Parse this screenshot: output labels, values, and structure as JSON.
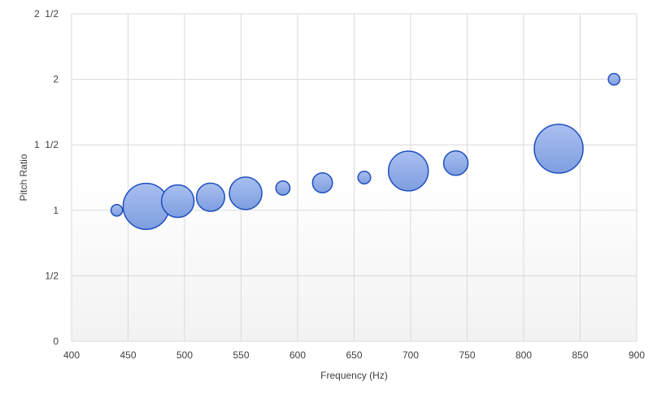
{
  "chart_data": {
    "type": "bubble",
    "title": "",
    "xlabel": "Frequency (Hz)",
    "ylabel": "Pitch Ratio",
    "xlim": [
      400,
      900
    ],
    "ylim": [
      0,
      2.5
    ],
    "grid": true,
    "x_ticks": [
      {
        "value": 400,
        "label": "400"
      },
      {
        "value": 450,
        "label": "450"
      },
      {
        "value": 500,
        "label": "500"
      },
      {
        "value": 550,
        "label": "550"
      },
      {
        "value": 600,
        "label": "600"
      },
      {
        "value": 650,
        "label": "650"
      },
      {
        "value": 700,
        "label": "700"
      },
      {
        "value": 750,
        "label": "750"
      },
      {
        "value": 800,
        "label": "800"
      },
      {
        "value": 850,
        "label": "850"
      },
      {
        "value": 900,
        "label": "900"
      }
    ],
    "y_ticks": [
      {
        "value": 0,
        "label": "0"
      },
      {
        "value": 0.5,
        "label": "1/2"
      },
      {
        "value": 1,
        "label": "1"
      },
      {
        "value": 1.5,
        "label": "1  1/2"
      },
      {
        "value": 2,
        "label": "2"
      },
      {
        "value": 2.5,
        "label": "2  1/2"
      }
    ],
    "points": [
      {
        "x": 440,
        "y": 1.0,
        "size": 1
      },
      {
        "x": 466,
        "y": 1.03,
        "size": 16
      },
      {
        "x": 494,
        "y": 1.07,
        "size": 8
      },
      {
        "x": 523,
        "y": 1.1,
        "size": 6
      },
      {
        "x": 554,
        "y": 1.13,
        "size": 8
      },
      {
        "x": 587,
        "y": 1.17,
        "size": 1.5
      },
      {
        "x": 622,
        "y": 1.21,
        "size": 3
      },
      {
        "x": 659,
        "y": 1.25,
        "size": 1.2
      },
      {
        "x": 698,
        "y": 1.3,
        "size": 12
      },
      {
        "x": 740,
        "y": 1.36,
        "size": 4.5
      },
      {
        "x": 831,
        "y": 1.47,
        "size": 18
      },
      {
        "x": 880,
        "y": 2.0,
        "size": 1
      }
    ],
    "colors": {
      "bubble_fill_top": "#a9bff0",
      "bubble_fill_bottom": "#7e9ee0",
      "bubble_stroke": "#1f4fbf",
      "plot_bg_top": "#ffffff",
      "plot_bg_bottom": "#f2f2f2"
    }
  }
}
